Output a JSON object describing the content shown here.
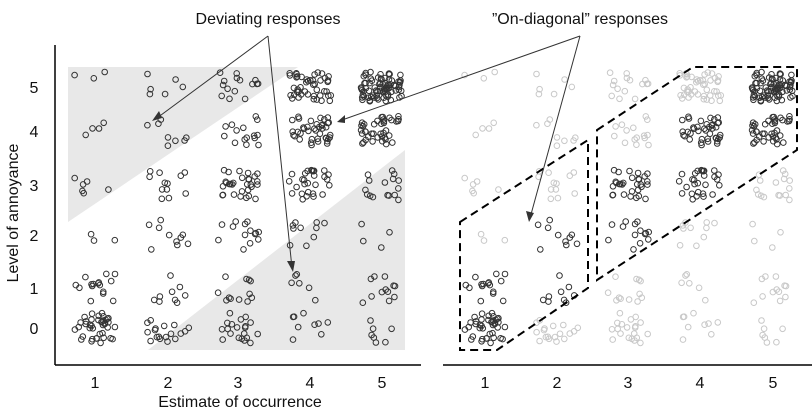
{
  "chart_data": {
    "type": "scatter",
    "xlabel": "Estimate of occurrence",
    "ylabel": "Level of annoyance",
    "x_ticks": [
      "1",
      "2",
      "3",
      "4",
      "5"
    ],
    "y_ticks": [
      "0",
      "1",
      "2",
      "3",
      "4",
      "5"
    ],
    "annotations": {
      "deviating": "Deviating responses",
      "on_diagonal": "”On-diagonal” responses"
    },
    "panels": [
      {
        "name": "left",
        "highlight": "deviating"
      },
      {
        "name": "right",
        "highlight": "on-diagonal"
      }
    ],
    "counts_by_annoyance": {
      "5": [
        3,
        6,
        15,
        45,
        80
      ],
      "4": [
        4,
        8,
        15,
        40,
        40
      ],
      "3": [
        6,
        12,
        30,
        28,
        16
      ],
      "2": [
        3,
        10,
        14,
        10,
        4
      ],
      "1": [
        16,
        9,
        12,
        6,
        12
      ],
      "0": [
        40,
        18,
        20,
        9,
        7
      ]
    },
    "colors": {
      "marker_highlight": "#333333",
      "marker_faded": "#c8c8c8",
      "shade": "#e8e8e8",
      "outline": "#000000"
    }
  }
}
